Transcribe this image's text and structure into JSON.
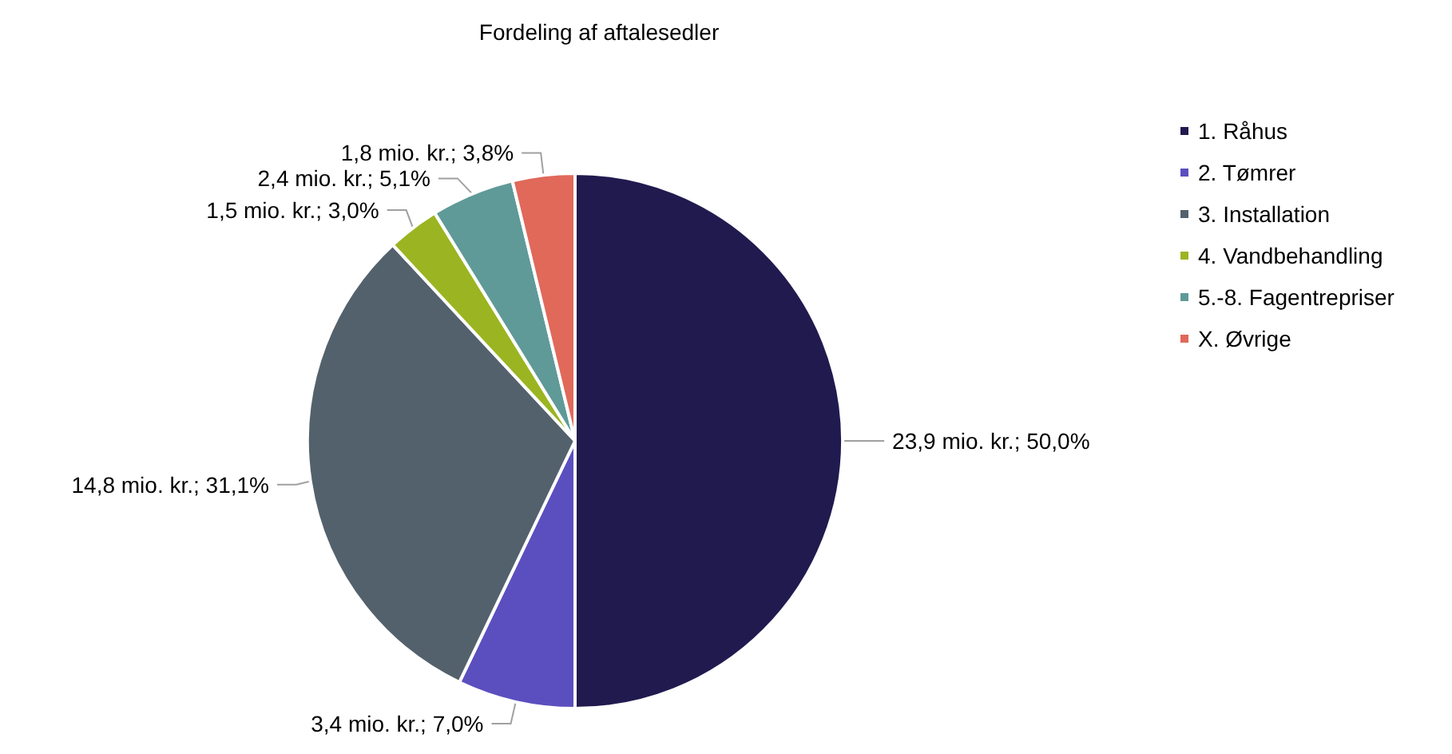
{
  "chart_data": {
    "type": "pie",
    "title": "Fordeling af aftalesedler",
    "categories": [
      "1. Råhus",
      "2. Tømrer",
      "3. Installation",
      "4. Vandbehandling",
      "5.-8. Fagentrepriser",
      "X. Øvrige"
    ],
    "values": [
      23.9,
      3.4,
      14.8,
      1.5,
      2.4,
      1.8
    ],
    "value_labels": [
      "23,9 mio. kr.; 50,0%",
      "3,4 mio. kr.; 7,0%",
      "14,8 mio. kr.; 31,1%",
      "1,5 mio. kr.; 3,0%",
      "2,4 mio. kr.; 5,1%",
      "1,8 mio. kr.; 3,8%"
    ],
    "colors": [
      "#211a4f",
      "#5b4fbf",
      "#53616c",
      "#9ab521",
      "#5f9a98",
      "#e0695a"
    ],
    "legend": "right"
  }
}
